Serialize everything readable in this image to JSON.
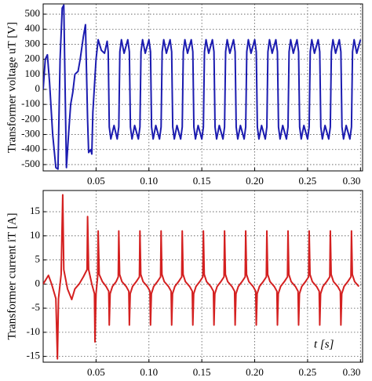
{
  "chart_data": [
    {
      "type": "line",
      "ylabel": "Transformer voltage uT [V]",
      "color": "#1c1cb0",
      "xlim": [
        0,
        0.302
      ],
      "ylim": [
        -542,
        568
      ],
      "xticks": [
        0.05,
        {
          "value": 0.1,
          "label": "0.10"
        },
        0.15,
        {
          "value": 0.2,
          "label": "0.20"
        },
        0.25,
        {
          "value": 0.3,
          "label": "0.30"
        }
      ],
      "yticks": [
        -500,
        -400,
        -300,
        -200,
        -100,
        0,
        100,
        200,
        300,
        400,
        500
      ],
      "grid": true,
      "x": [
        0,
        0.002,
        0.004,
        0.006,
        0.009,
        0.012,
        0.014,
        0.016,
        0.018,
        0.0195,
        0.021,
        0.022,
        0.024,
        0.026,
        0.028,
        0.03,
        0.033,
        0.035,
        0.038,
        0.04,
        0.042,
        0.043,
        0.045,
        0.046,
        0.047,
        0.05,
        0.052,
        0.055,
        0.058,
        0.0605,
        0.0615,
        0.0625,
        0.064,
        0.067,
        0.07,
        0.0715,
        0.0725,
        0.074,
        0.0765,
        0.08,
        0.0815,
        0.0825,
        0.084,
        0.0865,
        0.09,
        0.0915,
        0.0925,
        0.094,
        0.0965,
        0.1,
        0.1015,
        0.1025,
        0.104,
        0.1065,
        0.11,
        0.1115,
        0.1125,
        0.114,
        0.1165,
        0.12,
        0.1215,
        0.1225,
        0.124,
        0.1265,
        0.13,
        0.1315,
        0.1325,
        0.134,
        0.1365,
        0.14,
        0.1415,
        0.1425,
        0.144,
        0.1465,
        0.15,
        0.1515,
        0.1525,
        0.154,
        0.1565,
        0.16,
        0.1615,
        0.1625,
        0.164,
        0.1665,
        0.17,
        0.1715,
        0.1725,
        0.174,
        0.1765,
        0.18,
        0.1815,
        0.1825,
        0.184,
        0.1865,
        0.19,
        0.1915,
        0.1925,
        0.194,
        0.1965,
        0.2,
        0.2015,
        0.2025,
        0.204,
        0.2065,
        0.21,
        0.2115,
        0.2125,
        0.214,
        0.2165,
        0.22,
        0.2215,
        0.2225,
        0.224,
        0.2265,
        0.23,
        0.2315,
        0.2325,
        0.234,
        0.2365,
        0.24,
        0.2415,
        0.2425,
        0.244,
        0.2465,
        0.25,
        0.2515,
        0.2525,
        0.254,
        0.2565,
        0.26,
        0.2615,
        0.2625,
        0.264,
        0.2665,
        0.27,
        0.2715,
        0.2725,
        0.274,
        0.2765,
        0.28,
        0.2815,
        0.2825,
        0.284,
        0.2865,
        0.29,
        0.2915,
        0.2925,
        0.294,
        0.2965,
        0.3
      ],
      "values": [
        0,
        200,
        230,
        50,
        -300,
        -520,
        -530,
        200,
        540,
        560,
        -100,
        -520,
        -300,
        -100,
        -20,
        100,
        120,
        200,
        350,
        430,
        -200,
        -420,
        -400,
        -430,
        -150,
        200,
        330,
        260,
        240,
        320,
        250,
        -250,
        -330,
        -240,
        -330,
        -250,
        250,
        330,
        240,
        330,
        250,
        -250,
        -330,
        -240,
        -330,
        -250,
        250,
        330,
        240,
        330,
        250,
        -250,
        -330,
        -240,
        -330,
        -250,
        250,
        330,
        240,
        330,
        250,
        -250,
        -330,
        -240,
        -330,
        -250,
        250,
        330,
        240,
        330,
        250,
        -250,
        -330,
        -240,
        -330,
        -250,
        250,
        330,
        240,
        330,
        250,
        -250,
        -330,
        -240,
        -330,
        -250,
        250,
        330,
        240,
        330,
        250,
        -250,
        -330,
        -240,
        -330,
        -250,
        250,
        330,
        240,
        330,
        250,
        -250,
        -330,
        -240,
        -330,
        -250,
        250,
        330,
        240,
        330,
        250,
        -250,
        -330,
        -240,
        -330,
        -250,
        250,
        330,
        240,
        330,
        250,
        -250,
        -330,
        -240,
        -330,
        -250,
        250,
        330,
        240,
        330,
        250,
        -250,
        -330,
        -240,
        -330,
        -250,
        250,
        330,
        240,
        330,
        250,
        -250,
        -330,
        -240,
        -330,
        -250,
        250,
        330,
        240,
        330
      ]
    },
    {
      "type": "line",
      "ylabel": "Transformer current iT [A]",
      "color": "#d42020",
      "annotation": "t [s]",
      "xlim": [
        0,
        0.302
      ],
      "ylim": [
        -16.2,
        19.4
      ],
      "xticks": [
        0.05,
        {
          "value": 0.1,
          "label": "0.10"
        },
        0.15,
        {
          "value": 0.2,
          "label": "0.20"
        },
        0.25,
        {
          "value": 0.3,
          "label": "0.30"
        }
      ],
      "yticks": [
        -15,
        -10,
        -5,
        0,
        5,
        10,
        15
      ],
      "grid": true,
      "x": [
        0,
        0.005,
        0.008,
        0.012,
        0.0135,
        0.0145,
        0.017,
        0.0185,
        0.0195,
        0.023,
        0.027,
        0.03,
        0.034,
        0.038,
        0.0415,
        0.042,
        0.043,
        0.046,
        0.0485,
        0.049,
        0.05,
        0.0515,
        0.052,
        0.053,
        0.056,
        0.0595,
        0.062,
        0.0625,
        0.0633,
        0.0655,
        0.069,
        0.071,
        0.0715,
        0.0723,
        0.0745,
        0.0785,
        0.081,
        0.0815,
        0.0823,
        0.0845,
        0.088,
        0.091,
        0.0915,
        0.0923,
        0.0945,
        0.0985,
        0.101,
        0.1015,
        0.1023,
        0.1045,
        0.108,
        0.111,
        0.1115,
        0.1123,
        0.1145,
        0.1185,
        0.121,
        0.1215,
        0.1223,
        0.1245,
        0.128,
        0.131,
        0.1315,
        0.1323,
        0.1345,
        0.1385,
        0.141,
        0.1415,
        0.1423,
        0.1445,
        0.148,
        0.151,
        0.1515,
        0.1523,
        0.1545,
        0.1585,
        0.161,
        0.1615,
        0.1623,
        0.1645,
        0.168,
        0.171,
        0.1715,
        0.1723,
        0.1745,
        0.1785,
        0.181,
        0.1815,
        0.1823,
        0.1845,
        0.188,
        0.191,
        0.1915,
        0.1923,
        0.1945,
        0.1985,
        0.201,
        0.2015,
        0.2023,
        0.2045,
        0.208,
        0.211,
        0.2115,
        0.2123,
        0.2145,
        0.2185,
        0.221,
        0.2215,
        0.2223,
        0.2245,
        0.228,
        0.231,
        0.2315,
        0.2323,
        0.2345,
        0.2385,
        0.241,
        0.2415,
        0.2423,
        0.2445,
        0.248,
        0.251,
        0.2515,
        0.2523,
        0.2545,
        0.2585,
        0.261,
        0.2615,
        0.2623,
        0.2645,
        0.268,
        0.271,
        0.2715,
        0.2723,
        0.2745,
        0.2785,
        0.281,
        0.2815,
        0.2823,
        0.2845,
        0.288,
        0.291,
        0.2915,
        0.2923,
        0.2945,
        0.2985
      ],
      "values": [
        0,
        1.8,
        0,
        -3,
        -15.5,
        -3,
        2,
        18.5,
        3,
        -1,
        -3.2,
        -1,
        0,
        1.5,
        3,
        14,
        3,
        0,
        -2,
        -12,
        -2,
        1.5,
        11,
        2,
        0.5,
        -0.5,
        -1.5,
        -8.5,
        -2,
        -0.5,
        0.5,
        1.5,
        11,
        2,
        0.5,
        -0.5,
        -1.5,
        -8.5,
        -2,
        -0.5,
        0.5,
        1.5,
        11,
        2,
        0.5,
        -0.5,
        -1.5,
        -8.5,
        -2,
        -0.5,
        0.5,
        1.5,
        11,
        2,
        0.5,
        -0.5,
        -1.5,
        -8.5,
        -2,
        -0.5,
        0.5,
        1.5,
        11,
        2,
        0.5,
        -0.5,
        -1.5,
        -8.5,
        -2,
        -0.5,
        0.5,
        1.5,
        11,
        2,
        0.5,
        -0.5,
        -1.5,
        -8.5,
        -2,
        -0.5,
        0.5,
        1.5,
        11,
        2,
        0.5,
        -0.5,
        -1.5,
        -8.5,
        -2,
        -0.5,
        0.5,
        1.5,
        11,
        2,
        0.5,
        -0.5,
        -1.5,
        -8.5,
        -2,
        -0.5,
        0.5,
        1.5,
        11,
        2,
        0.5,
        -0.5,
        -1.5,
        -8.5,
        -2,
        -0.5,
        0.5,
        1.5,
        11,
        2,
        0.5,
        -0.5,
        -1.5,
        -8.5,
        -2,
        -0.5,
        0.5,
        1.5,
        11,
        2,
        0.5,
        -0.5,
        -1.5,
        -8.5,
        -2,
        -0.5,
        0.5,
        1.5,
        11,
        2,
        0.5,
        -0.5,
        -1.5,
        -8.5,
        -2,
        -0.5,
        0.5,
        1.5,
        11,
        2,
        0.5,
        -0.5
      ]
    }
  ]
}
